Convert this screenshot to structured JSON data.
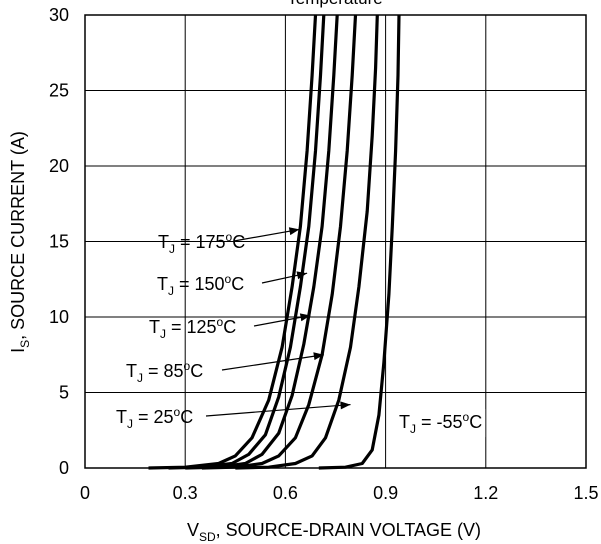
{
  "chart_data": {
    "type": "line",
    "title": "Temperature",
    "xlabel": "SOURCE-DRAIN VOLTAGE (V)",
    "xlabel_var": "V",
    "xlabel_sub": "SD",
    "ylabel": "SOURCE CURRENT (A)",
    "ylabel_var": "I",
    "ylabel_sub": "S",
    "xlim": [
      0,
      1.5
    ],
    "ylim": [
      0,
      30
    ],
    "xticks": [
      "0",
      "0.3",
      "0.6",
      "0.9",
      "1.2",
      "1.5"
    ],
    "yticks": [
      "0",
      "5",
      "10",
      "15",
      "20",
      "25",
      "30"
    ],
    "grid": true,
    "series": [
      {
        "name": "TJ = 175°C",
        "label": {
          "prefix": "T",
          "sub": "J",
          "mid": " = 175",
          "sup": "o",
          "suffix": "C"
        },
        "points": [
          [
            0.19,
            0.0
          ],
          [
            0.3,
            0.05
          ],
          [
            0.4,
            0.3
          ],
          [
            0.45,
            0.8
          ],
          [
            0.5,
            2.0
          ],
          [
            0.55,
            4.5
          ],
          [
            0.59,
            8.0
          ],
          [
            0.62,
            12.0
          ],
          [
            0.645,
            16.0
          ],
          [
            0.665,
            21.0
          ],
          [
            0.68,
            26.0
          ],
          [
            0.69,
            30.0
          ]
        ]
      },
      {
        "name": "TJ = 150°C",
        "label": {
          "prefix": "T",
          "sub": "J",
          "mid": " = 150",
          "sup": "o",
          "suffix": "C"
        },
        "points": [
          [
            0.25,
            0.0
          ],
          [
            0.35,
            0.05
          ],
          [
            0.44,
            0.3
          ],
          [
            0.49,
            0.9
          ],
          [
            0.54,
            2.2
          ],
          [
            0.58,
            4.7
          ],
          [
            0.615,
            8.0
          ],
          [
            0.645,
            12.0
          ],
          [
            0.67,
            16.0
          ],
          [
            0.69,
            21.0
          ],
          [
            0.705,
            26.0
          ],
          [
            0.715,
            30.0
          ]
        ]
      },
      {
        "name": "TJ = 125°C",
        "label": {
          "prefix": "T",
          "sub": "J",
          "mid": " = 125",
          "sup": "o",
          "suffix": "C"
        },
        "points": [
          [
            0.3,
            0.0
          ],
          [
            0.4,
            0.05
          ],
          [
            0.48,
            0.3
          ],
          [
            0.53,
            0.9
          ],
          [
            0.58,
            2.3
          ],
          [
            0.62,
            4.8
          ],
          [
            0.655,
            8.2
          ],
          [
            0.685,
            12.0
          ],
          [
            0.71,
            16.0
          ],
          [
            0.73,
            21.0
          ],
          [
            0.745,
            26.0
          ],
          [
            0.755,
            30.0
          ]
        ]
      },
      {
        "name": "TJ = 85°C",
        "label": {
          "prefix": "T",
          "sub": "J",
          "mid": " = 85",
          "sup": "o",
          "suffix": "C"
        },
        "points": [
          [
            0.35,
            0.0
          ],
          [
            0.45,
            0.05
          ],
          [
            0.53,
            0.3
          ],
          [
            0.58,
            0.8
          ],
          [
            0.63,
            2.0
          ],
          [
            0.67,
            4.2
          ],
          [
            0.71,
            7.5
          ],
          [
            0.74,
            11.5
          ],
          [
            0.765,
            16.0
          ],
          [
            0.785,
            21.0
          ],
          [
            0.8,
            26.0
          ],
          [
            0.81,
            30.0
          ]
        ]
      },
      {
        "name": "TJ = 25°C",
        "label": {
          "prefix": "T",
          "sub": "J",
          "mid": " = 25",
          "sup": "o",
          "suffix": "C"
        },
        "points": [
          [
            0.45,
            0.0
          ],
          [
            0.55,
            0.05
          ],
          [
            0.63,
            0.3
          ],
          [
            0.68,
            0.8
          ],
          [
            0.72,
            2.0
          ],
          [
            0.76,
            4.5
          ],
          [
            0.795,
            8.0
          ],
          [
            0.82,
            12.0
          ],
          [
            0.845,
            17.0
          ],
          [
            0.86,
            22.0
          ],
          [
            0.87,
            26.5
          ],
          [
            0.875,
            30.0
          ]
        ]
      },
      {
        "name": "TJ = -55°C",
        "label": {
          "prefix": "T",
          "sub": "J",
          "mid": " = -55",
          "sup": "o",
          "suffix": "C"
        },
        "points": [
          [
            0.7,
            0.0
          ],
          [
            0.78,
            0.05
          ],
          [
            0.83,
            0.3
          ],
          [
            0.86,
            1.2
          ],
          [
            0.88,
            3.5
          ],
          [
            0.895,
            7.0
          ],
          [
            0.91,
            11.5
          ],
          [
            0.92,
            16.0
          ],
          [
            0.93,
            21.0
          ],
          [
            0.937,
            26.0
          ],
          [
            0.94,
            30.0
          ]
        ]
      }
    ]
  }
}
